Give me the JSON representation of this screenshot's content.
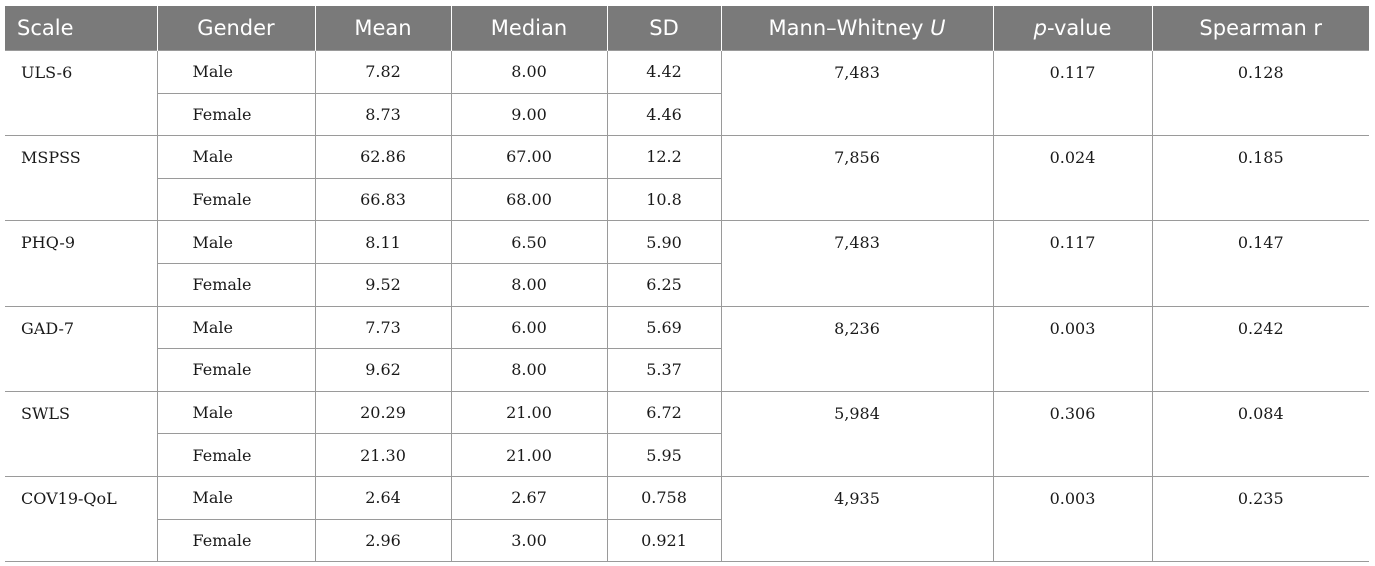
{
  "table": {
    "headers": {
      "scale": "Scale",
      "gender": "Gender",
      "mean": "Mean",
      "median": "Median",
      "sd": "SD",
      "mwu_prefix": "Mann–Whitney ",
      "mwu_italic": "U",
      "pvalue_italic": "p",
      "pvalue_suffix": "-value",
      "spearman": "Spearman r"
    },
    "rows": [
      {
        "scale": "ULS-6",
        "male": {
          "gender": "Male",
          "mean": "7.82",
          "median": "8.00",
          "sd": "4.42"
        },
        "female": {
          "gender": "Female",
          "mean": "8.73",
          "median": "9.00",
          "sd": "4.46"
        },
        "mwu": "7,483",
        "p": "0.117",
        "spearman": "0.128"
      },
      {
        "scale": "MSPSS",
        "male": {
          "gender": "Male",
          "mean": "62.86",
          "median": "67.00",
          "sd": "12.2"
        },
        "female": {
          "gender": "Female",
          "mean": "66.83",
          "median": "68.00",
          "sd": "10.8"
        },
        "mwu": "7,856",
        "p": "0.024",
        "spearman": "0.185"
      },
      {
        "scale": "PHQ-9",
        "male": {
          "gender": "Male",
          "mean": "8.11",
          "median": "6.50",
          "sd": "5.90"
        },
        "female": {
          "gender": "Female",
          "mean": "9.52",
          "median": "8.00",
          "sd": "6.25"
        },
        "mwu": "7,483",
        "p": "0.117",
        "spearman": "0.147"
      },
      {
        "scale": "GAD-7",
        "male": {
          "gender": "Male",
          "mean": "7.73",
          "median": "6.00",
          "sd": "5.69"
        },
        "female": {
          "gender": "Female",
          "mean": "9.62",
          "median": "8.00",
          "sd": "5.37"
        },
        "mwu": "8,236",
        "p": "0.003",
        "spearman": "0.242"
      },
      {
        "scale": "SWLS",
        "male": {
          "gender": "Male",
          "mean": "20.29",
          "median": "21.00",
          "sd": "6.72"
        },
        "female": {
          "gender": "Female",
          "mean": "21.30",
          "median": "21.00",
          "sd": "5.95"
        },
        "mwu": "5,984",
        "p": "0.306",
        "spearman": "0.084"
      },
      {
        "scale": "COV19-QoL",
        "male": {
          "gender": "Male",
          "mean": "2.64",
          "median": "2.67",
          "sd": "0.758"
        },
        "female": {
          "gender": "Female",
          "mean": "2.96",
          "median": "3.00",
          "sd": "0.921"
        },
        "mwu": "4,935",
        "p": "0.003",
        "spearman": "0.235"
      }
    ]
  }
}
